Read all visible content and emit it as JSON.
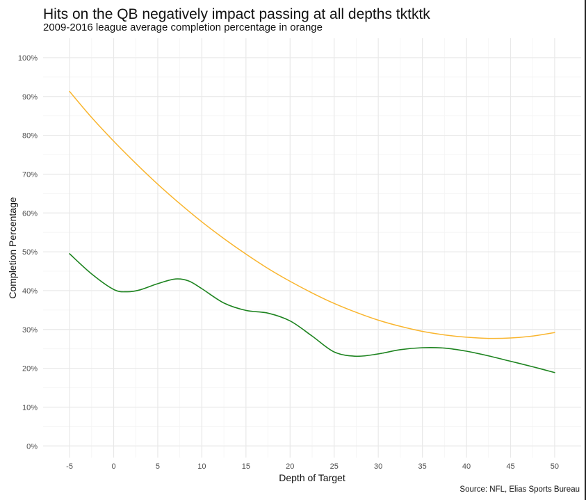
{
  "chart_data": {
    "type": "line",
    "title": "Hits on the QB negatively impact passing at all depths tktktk",
    "subtitle": "2009-2016 league average completion percentage in orange",
    "caption": "Source: NFL, Elias Sports Bureau",
    "xlabel": "Depth of Target",
    "ylabel": "Completion Percentage",
    "xlim": [
      -8,
      53
    ],
    "ylim": [
      -0.03,
      1.05
    ],
    "grid": true,
    "x_ticks": [
      -5,
      0,
      5,
      10,
      15,
      20,
      25,
      30,
      35,
      40,
      45,
      50
    ],
    "x_tick_labels": [
      "-5",
      "0",
      "5",
      "10",
      "15",
      "20",
      "25",
      "30",
      "35",
      "40",
      "45",
      "50"
    ],
    "y_ticks": [
      0,
      0.1,
      0.2,
      0.3,
      0.4,
      0.5,
      0.6,
      0.7,
      0.8,
      0.9,
      1.0
    ],
    "y_tick_labels": [
      "0%",
      "10%",
      "20%",
      "30%",
      "40%",
      "50%",
      "60%",
      "70%",
      "80%",
      "90%",
      "100%"
    ],
    "series": [
      {
        "color": "#f9b52e",
        "x": [
          -5,
          -2.5,
          0,
          2.5,
          5,
          7.5,
          10,
          12.5,
          15,
          17.5,
          20,
          22.5,
          25,
          27.5,
          30,
          32.5,
          35,
          37.5,
          40,
          42.5,
          45,
          47.5,
          50
        ],
        "y": [
          0.913,
          0.846,
          0.785,
          0.728,
          0.674,
          0.624,
          0.577,
          0.534,
          0.494,
          0.457,
          0.424,
          0.394,
          0.367,
          0.344,
          0.324,
          0.308,
          0.295,
          0.286,
          0.28,
          0.277,
          0.278,
          0.283,
          0.292
        ]
      },
      {
        "color": "#1e8420",
        "x": [
          -5,
          -2.5,
          0,
          1.5,
          3,
          5,
          7,
          8.5,
          10,
          12.5,
          15,
          17.5,
          20,
          22.5,
          25,
          27.5,
          30,
          32.5,
          35,
          37.5,
          40,
          42.5,
          45,
          47.5,
          50
        ],
        "y": [
          0.495,
          0.443,
          0.403,
          0.397,
          0.402,
          0.418,
          0.43,
          0.425,
          0.405,
          0.368,
          0.349,
          0.342,
          0.322,
          0.283,
          0.242,
          0.231,
          0.237,
          0.248,
          0.253,
          0.252,
          0.244,
          0.232,
          0.218,
          0.204,
          0.189
        ]
      }
    ]
  }
}
